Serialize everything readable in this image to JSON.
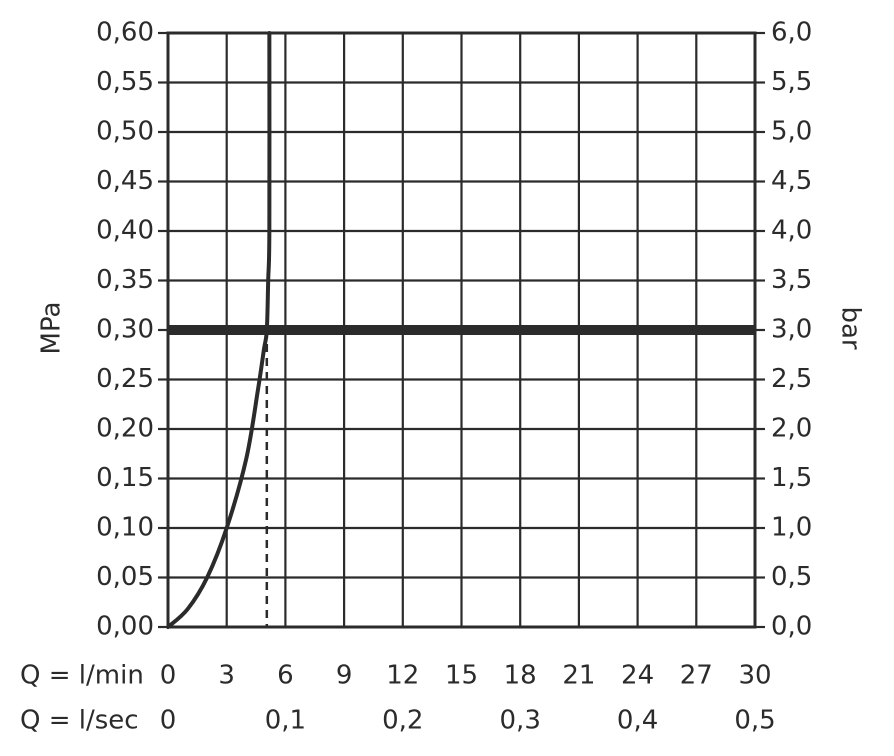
{
  "chart_data": {
    "type": "line",
    "title": "",
    "left_axis": {
      "label": "MPa",
      "ylim": [
        0,
        0.6
      ],
      "ticks": [
        0,
        0.05,
        0.1,
        0.15,
        0.2,
        0.25,
        0.3,
        0.35,
        0.4,
        0.45,
        0.5,
        0.55,
        0.6
      ],
      "tick_labels": [
        "0,00",
        "0,05",
        "0,10",
        "0,15",
        "0,20",
        "0,25",
        "0,30",
        "0,35",
        "0,40",
        "0,45",
        "0,50",
        "0,55",
        "0,60"
      ]
    },
    "right_axis": {
      "label": "bar",
      "ylim": [
        0,
        6.0
      ],
      "tick_labels": [
        "0,0",
        "0,5",
        "1,0",
        "1,5",
        "2,0",
        "2,5",
        "3,0",
        "3,5",
        "4,0",
        "4,5",
        "5,0",
        "5,5",
        "6,0"
      ]
    },
    "x_axis": {
      "xlim": [
        0,
        30
      ],
      "row_lmin_label": "Q = l/min",
      "ticks_lmin": [
        0,
        3,
        6,
        9,
        12,
        15,
        18,
        21,
        24,
        27,
        30
      ],
      "tick_labels_lmin": [
        "0",
        "3",
        "6",
        "9",
        "12",
        "15",
        "18",
        "21",
        "24",
        "27",
        "30"
      ],
      "row_lsec_label": "Q = l/sec",
      "ticks_lsec_at_lmin": [
        0,
        6,
        12,
        18,
        24,
        30
      ],
      "tick_labels_lsec": [
        "0",
        "0,1",
        "0,2",
        "0,3",
        "0,4",
        "0,5"
      ]
    },
    "grid": true,
    "series": [
      {
        "x": [
          0,
          1,
          2,
          3,
          4,
          4.6,
          4.9,
          5.05,
          5.12,
          5.18,
          5.18
        ],
        "y": [
          0,
          0.018,
          0.05,
          0.1,
          0.17,
          0.24,
          0.28,
          0.3,
          0.35,
          0.4,
          0.6
        ]
      }
    ],
    "reference_lines": {
      "horizontal_y": 0.3,
      "vertical_solid_x": 6,
      "vertical_dashed_x": 5.05
    }
  }
}
